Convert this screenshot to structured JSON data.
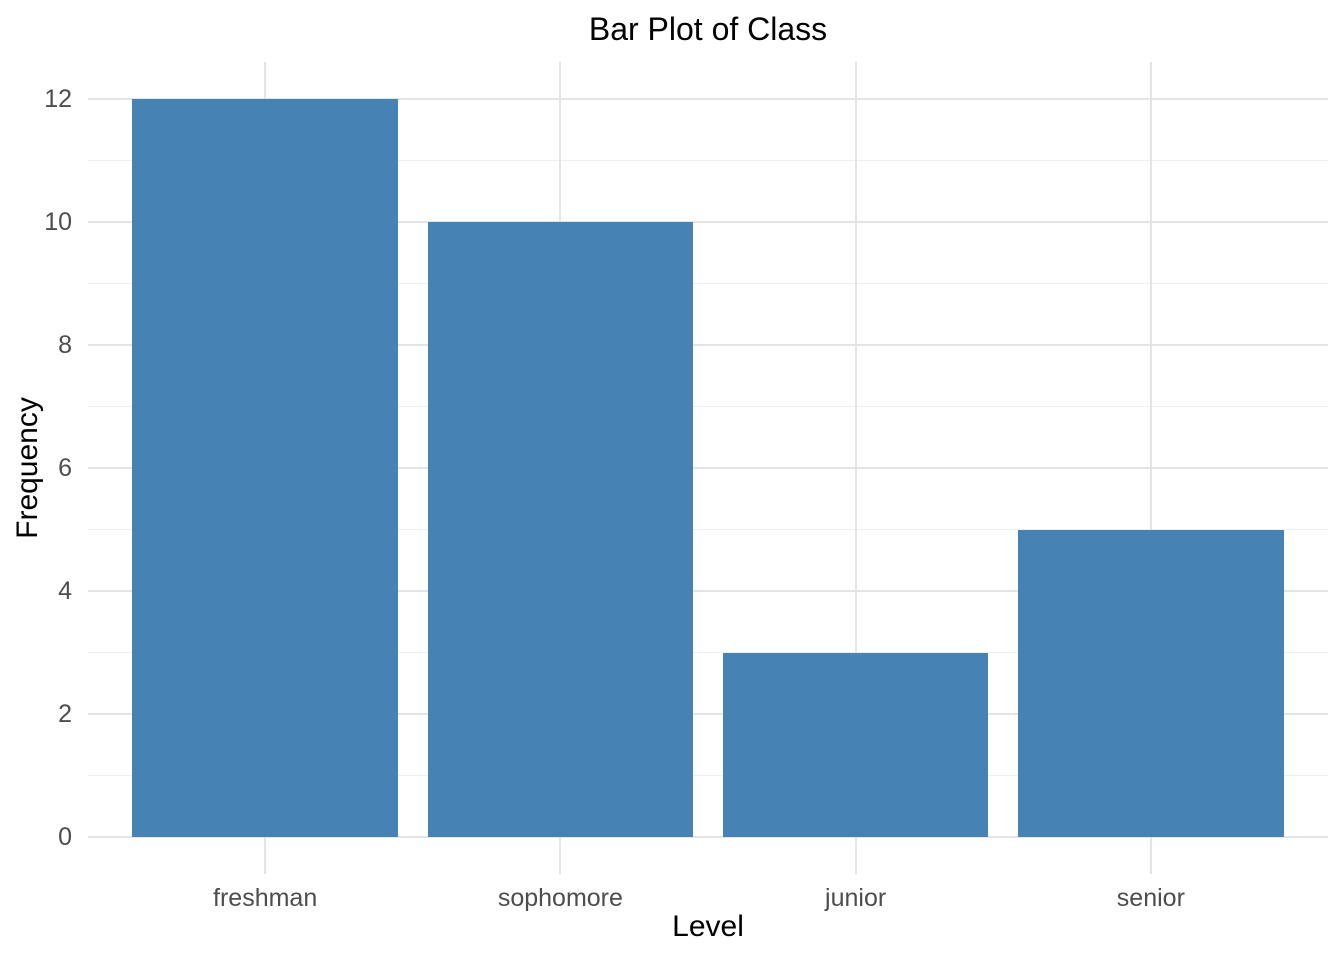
{
  "chart_data": {
    "type": "bar",
    "title": "Bar Plot of Class",
    "xlabel": "Level",
    "ylabel": "Frequency",
    "categories": [
      "freshman",
      "sophomore",
      "junior",
      "senior"
    ],
    "values": [
      12,
      10,
      3,
      5
    ],
    "ylim": [
      0,
      12
    ],
    "yticks": [
      0,
      2,
      4,
      6,
      8,
      10,
      12
    ],
    "yminor": [
      1,
      3,
      5,
      7,
      9,
      11
    ],
    "grid": "on",
    "legend": "none",
    "colors": {
      "bar": "#4682B4",
      "background": "#FFFFFF",
      "grid_major": "#E4E4E4",
      "grid_minor": "#EFEFEF",
      "tick_label": "#4D4D4D",
      "axis_title": "#000000",
      "title": "#000000"
    }
  }
}
